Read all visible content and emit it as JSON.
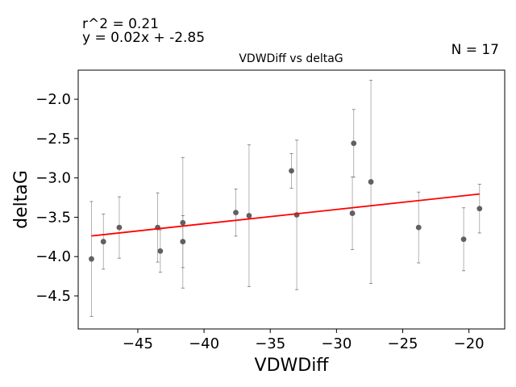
{
  "annotations": {
    "r_squared": "r^2 = 0.21",
    "equation": "y = 0.02x + -2.85",
    "n_label": "N = 17"
  },
  "chart_data": {
    "type": "scatter",
    "title": "VDWDiff vs deltaG",
    "xlabel": "VDWDiff",
    "ylabel": "deltaG",
    "xlim": [
      -49.5,
      -17.3
    ],
    "ylim": [
      -4.92,
      -1.63
    ],
    "xticks": [
      -45,
      -40,
      -35,
      -30,
      -25,
      -20
    ],
    "xtick_labels": [
      "−45",
      "−40",
      "−35",
      "−30",
      "−25",
      "−20"
    ],
    "yticks": [
      -4.5,
      -4.0,
      -3.5,
      -3.0,
      -2.5,
      -2.0
    ],
    "ytick_labels": [
      "−4.5",
      "−4.0",
      "−3.5",
      "−3.0",
      "−2.5",
      "−2.0"
    ],
    "grid": false,
    "points": [
      {
        "x": -48.5,
        "y": -4.03,
        "err": 0.73
      },
      {
        "x": -47.6,
        "y": -3.81,
        "err": 0.35
      },
      {
        "x": -46.4,
        "y": -3.63,
        "err": 0.39
      },
      {
        "x": -43.5,
        "y": -3.63,
        "err": 0.44
      },
      {
        "x": -43.3,
        "y": -3.93,
        "err": 0.27
      },
      {
        "x": -41.6,
        "y": -3.57,
        "err": 0.83
      },
      {
        "x": -41.6,
        "y": -3.81,
        "err": 0.33
      },
      {
        "x": -37.6,
        "y": -3.44,
        "err": 0.3
      },
      {
        "x": -36.6,
        "y": -3.48,
        "err": 0.9
      },
      {
        "x": -33.4,
        "y": -2.91,
        "err": 0.22
      },
      {
        "x": -33.0,
        "y": -3.47,
        "err": 0.95
      },
      {
        "x": -28.8,
        "y": -3.45,
        "err": 0.46
      },
      {
        "x": -28.7,
        "y": -2.56,
        "err": 0.43
      },
      {
        "x": -27.4,
        "y": -3.05,
        "err": 1.29
      },
      {
        "x": -23.8,
        "y": -3.63,
        "err": 0.45
      },
      {
        "x": -20.4,
        "y": -3.78,
        "err": 0.4
      },
      {
        "x": -19.2,
        "y": -3.39,
        "err": 0.31
      }
    ],
    "fit_line": {
      "slope": 0.0182,
      "intercept": -2.855,
      "x_range": [
        -48.5,
        -19.2
      ],
      "color": "#ff0000"
    },
    "marker_color": "#606060",
    "errorbar_color": "#a0a0a0"
  }
}
